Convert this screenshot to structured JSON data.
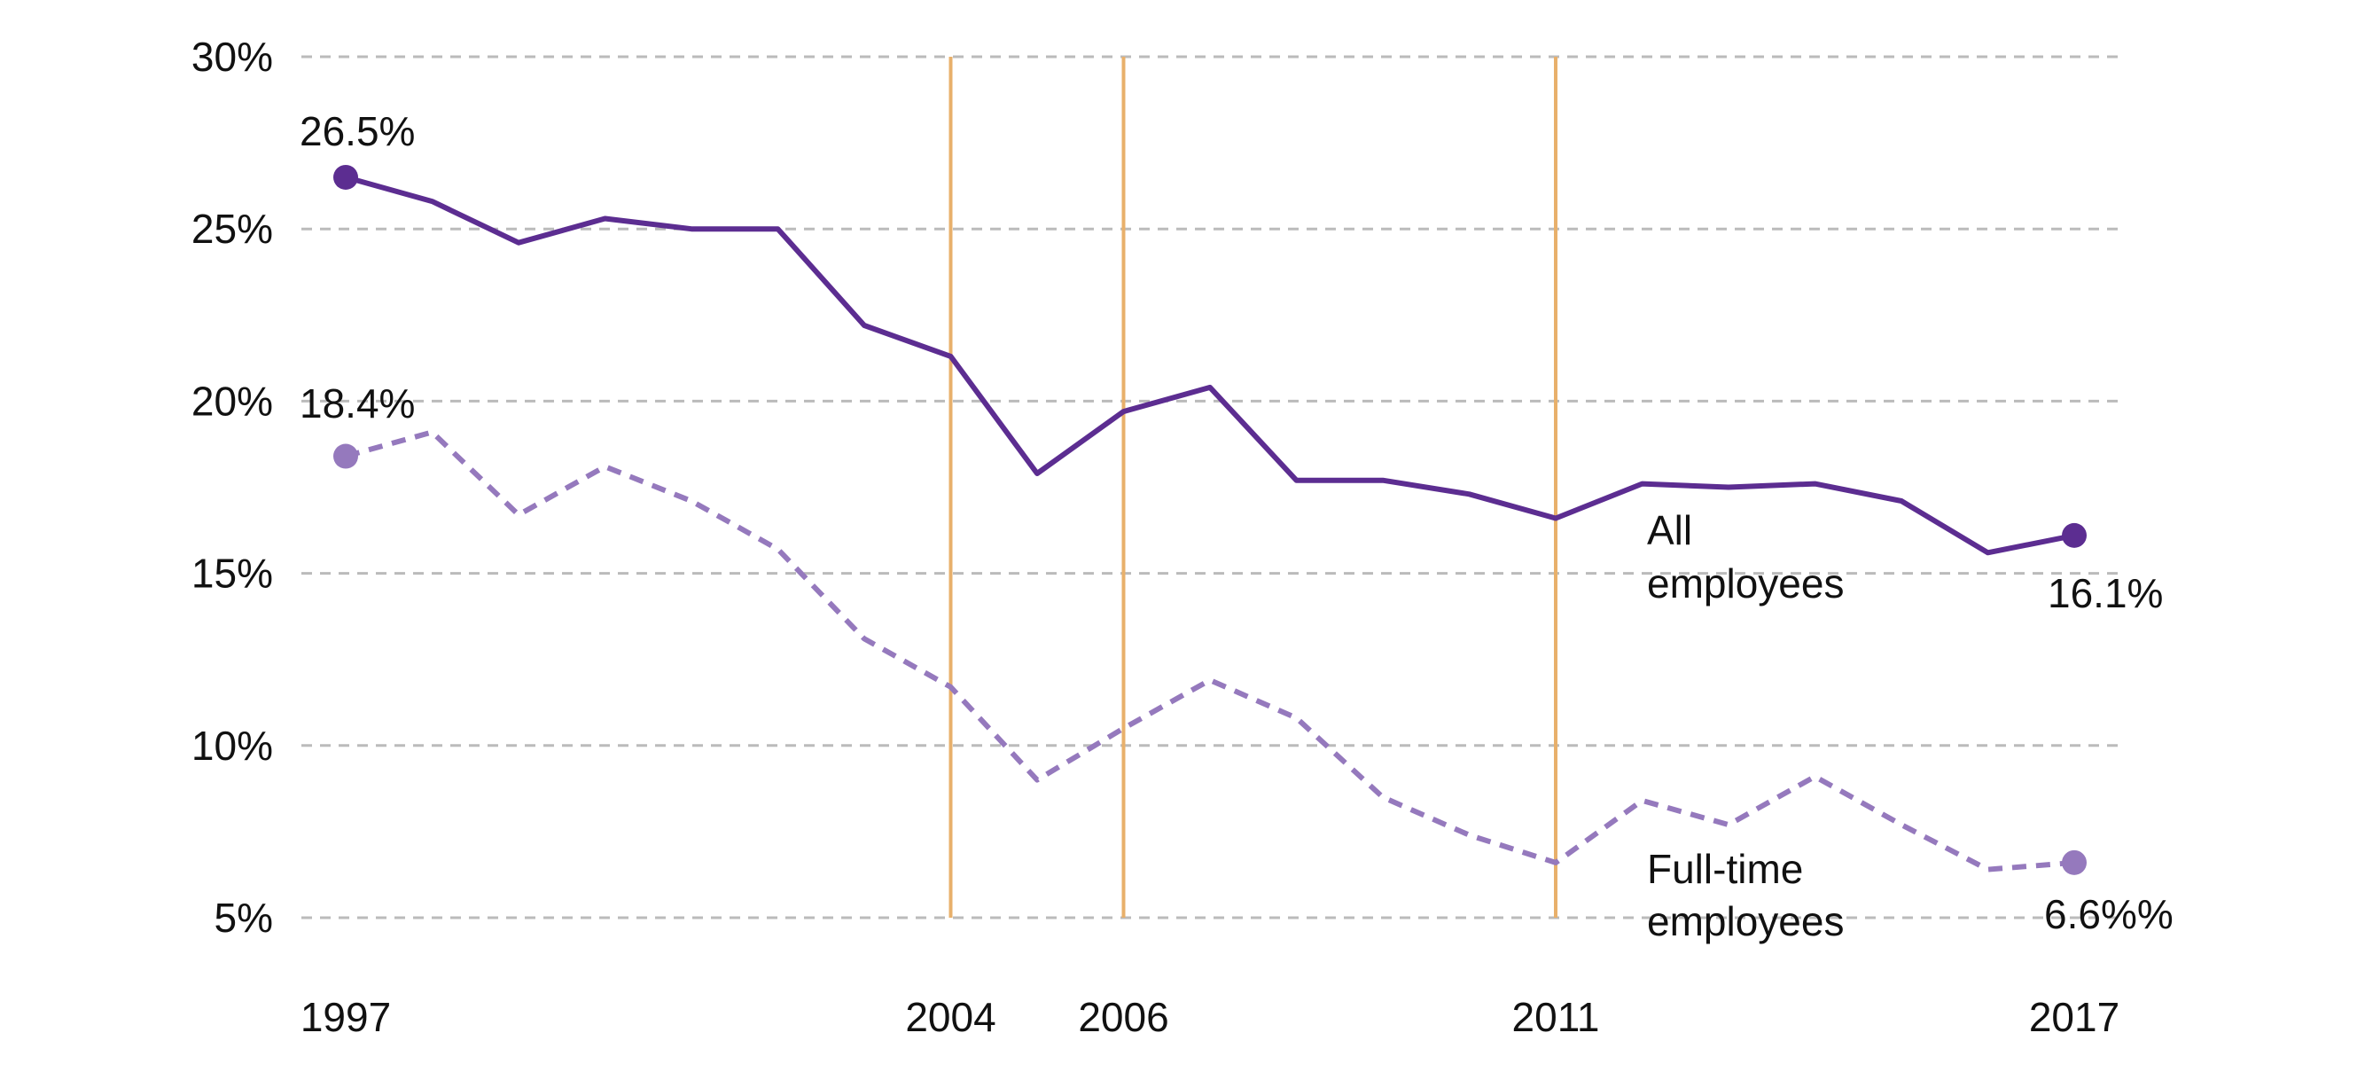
{
  "chart_data": {
    "type": "line",
    "title": "",
    "xlabel": "",
    "ylabel": "",
    "xlim": [
      1997,
      2017
    ],
    "ylim": [
      5,
      30
    ],
    "grid": true,
    "y_ticks": [
      {
        "value": 30,
        "label": "30%"
      },
      {
        "value": 25,
        "label": "25%"
      },
      {
        "value": 20,
        "label": "20%"
      },
      {
        "value": 15,
        "label": "15%"
      },
      {
        "value": 10,
        "label": "10%"
      },
      {
        "value": 5,
        "label": "5%"
      }
    ],
    "x_ticks": [
      {
        "value": 1997,
        "label": "1997"
      },
      {
        "value": 2004,
        "label": "2004"
      },
      {
        "value": 2006,
        "label": "2006"
      },
      {
        "value": 2011,
        "label": "2011"
      },
      {
        "value": 2017,
        "label": "2017"
      }
    ],
    "vertical_markers": [
      2004,
      2006,
      2011
    ],
    "colors": {
      "all": "#5c2d91",
      "fulltime": "#9579bd",
      "markers": "#e8b06b",
      "grid": "#bbbbbb"
    },
    "x": [
      1997,
      1998,
      1999,
      2000,
      2001,
      2002,
      2003,
      2004,
      2005,
      2006,
      2007,
      2008,
      2009,
      2010,
      2011,
      2012,
      2013,
      2014,
      2015,
      2016,
      2017
    ],
    "series": [
      {
        "id": "all",
        "name": "All employees",
        "label_lines": [
          "All",
          "employees"
        ],
        "style": "solid",
        "values": [
          26.5,
          25.8,
          24.6,
          25.3,
          25.0,
          25.0,
          22.2,
          21.3,
          17.9,
          19.7,
          20.4,
          17.7,
          17.7,
          17.3,
          16.6,
          17.6,
          17.5,
          17.6,
          17.1,
          15.6,
          16.1
        ],
        "start_label": "26.5%",
        "end_label": "16.1%"
      },
      {
        "id": "fulltime",
        "name": "Full-time employees",
        "label_lines": [
          "Full-time",
          "employees"
        ],
        "style": "dashed",
        "values": [
          18.4,
          19.1,
          16.7,
          18.1,
          17.1,
          15.7,
          13.1,
          11.7,
          9.0,
          10.5,
          11.9,
          10.8,
          8.5,
          7.4,
          6.6,
          8.4,
          7.7,
          9.1,
          7.7,
          6.4,
          6.6
        ],
        "start_label": "18.4%",
        "end_label": "6.6%%"
      }
    ]
  }
}
